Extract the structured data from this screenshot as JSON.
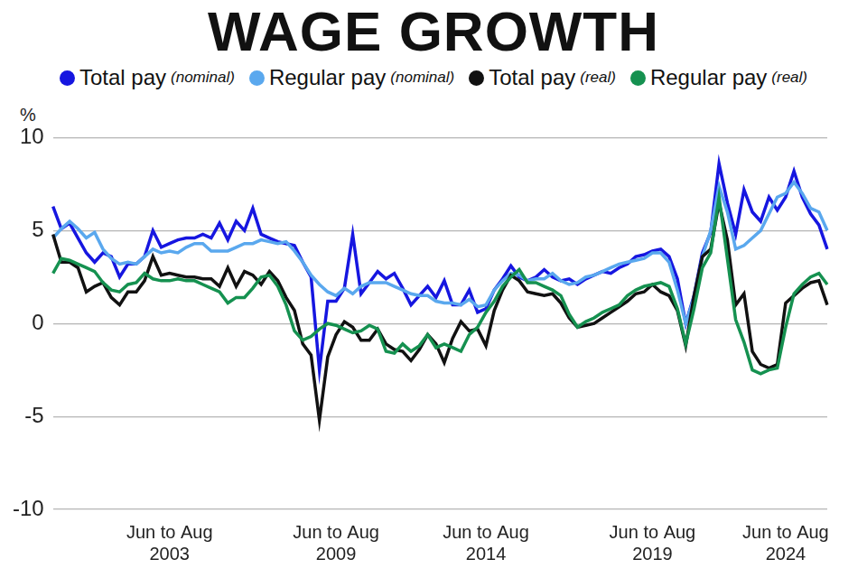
{
  "chart_data": {
    "type": "line",
    "title": "WAGE GROWTH",
    "ylabel": "%",
    "ylim": [
      -10,
      10
    ],
    "yticks": [
      -10,
      -5,
      0,
      5,
      10
    ],
    "grid": true,
    "categories": [
      null,
      null,
      null,
      null,
      null,
      null,
      null,
      null,
      null,
      null,
      null,
      null,
      null,
      null,
      "Jun to Aug 2003",
      null,
      null,
      null,
      null,
      null,
      null,
      null,
      null,
      null,
      null,
      null,
      null,
      null,
      null,
      null,
      null,
      null,
      null,
      null,
      "Jun to Aug 2009",
      null,
      null,
      null,
      null,
      null,
      null,
      null,
      null,
      null,
      null,
      null,
      null,
      null,
      null,
      null,
      null,
      null,
      "Jun to Aug 2014",
      null,
      null,
      null,
      null,
      null,
      null,
      null,
      null,
      null,
      null,
      null,
      null,
      null,
      null,
      null,
      null,
      null,
      null,
      null,
      "Jun to Aug 2019",
      null,
      null,
      null,
      null,
      null,
      null,
      null,
      null,
      null,
      null,
      null,
      null,
      null,
      null,
      null,
      "Jun to Aug 2024",
      null,
      null,
      null,
      null,
      null
    ],
    "series": [
      {
        "name": "Total pay (nominal)",
        "color": "#1616e0",
        "values": [
          6.3,
          5.1,
          5.4,
          4.6,
          3.8,
          3.3,
          3.8,
          3.6,
          2.5,
          3.2,
          3.2,
          3.6,
          5.0,
          4.1,
          4.3,
          4.5,
          4.6,
          4.6,
          4.8,
          4.6,
          5.4,
          4.5,
          5.5,
          5.0,
          6.2,
          4.8,
          4.6,
          4.4,
          4.3,
          4.2,
          3.3,
          2.5,
          -2.5,
          1.2,
          1.2,
          1.9,
          4.8,
          1.6,
          2.2,
          2.8,
          2.4,
          2.7,
          1.9,
          1.0,
          1.5,
          2.0,
          1.4,
          2.3,
          1.0,
          1.0,
          1.8,
          0.6,
          0.8,
          1.8,
          2.4,
          3.1,
          2.5,
          2.3,
          2.5,
          2.9,
          2.5,
          2.3,
          2.4,
          2.1,
          2.4,
          2.6,
          2.8,
          2.7,
          3.0,
          3.2,
          3.6,
          3.7,
          3.9,
          4.0,
          3.6,
          2.4,
          0.0,
          1.5,
          3.8,
          4.9,
          8.6,
          6.5,
          4.8,
          7.2,
          6.0,
          5.5,
          6.8,
          6.1,
          6.8,
          8.2,
          6.8,
          5.9,
          5.3,
          4.0
        ]
      },
      {
        "name": "Regular pay (nominal)",
        "color": "#5aa8ee",
        "values": [
          4.6,
          5.1,
          5.5,
          5.1,
          4.6,
          4.9,
          4.0,
          3.5,
          3.2,
          3.3,
          3.2,
          3.6,
          4.0,
          3.8,
          3.9,
          3.8,
          4.1,
          4.3,
          4.3,
          3.9,
          3.9,
          3.9,
          4.1,
          4.3,
          4.3,
          4.5,
          4.4,
          4.3,
          4.4,
          3.9,
          3.3,
          2.6,
          2.1,
          1.7,
          1.5,
          1.9,
          1.6,
          2.0,
          2.2,
          2.2,
          2.2,
          2.0,
          1.8,
          1.6,
          1.5,
          1.5,
          1.2,
          1.1,
          1.1,
          1.0,
          1.3,
          0.9,
          1.0,
          1.8,
          2.3,
          2.7,
          2.6,
          2.3,
          2.4,
          2.4,
          2.7,
          2.3,
          2.1,
          2.2,
          2.5,
          2.6,
          2.8,
          3.0,
          3.2,
          3.3,
          3.4,
          3.5,
          3.8,
          3.8,
          3.3,
          1.8,
          0.0,
          1.4,
          3.6,
          5.0,
          7.4,
          6.0,
          4.0,
          4.2,
          4.6,
          5.0,
          5.9,
          6.8,
          7.0,
          7.6,
          7.0,
          6.2,
          6.0,
          5.0
        ]
      },
      {
        "name": "Total pay (real)",
        "color": "#111111",
        "values": [
          4.8,
          3.3,
          3.3,
          3.0,
          1.7,
          2.0,
          2.2,
          1.4,
          1.0,
          1.7,
          1.7,
          2.3,
          3.6,
          2.6,
          2.7,
          2.6,
          2.5,
          2.5,
          2.4,
          2.4,
          2.0,
          3.0,
          2.0,
          2.8,
          2.6,
          2.1,
          2.8,
          2.3,
          1.4,
          0.7,
          -1.1,
          -1.7,
          -5.2,
          -1.8,
          -0.6,
          0.1,
          -0.2,
          -0.9,
          -0.9,
          -0.3,
          -1.1,
          -1.4,
          -1.5,
          -2.0,
          -1.4,
          -0.6,
          -1.1,
          -2.1,
          -0.8,
          0.1,
          -0.4,
          -0.3,
          -1.2,
          0.7,
          1.8,
          2.6,
          2.3,
          1.7,
          1.6,
          1.5,
          1.6,
          1.1,
          0.3,
          -0.2,
          -0.1,
          0.0,
          0.3,
          0.6,
          0.9,
          1.2,
          1.6,
          1.7,
          2.1,
          1.7,
          1.5,
          0.7,
          -1.2,
          1.5,
          3.6,
          4.0,
          6.5,
          4.5,
          1.0,
          1.6,
          -1.5,
          -2.2,
          -2.4,
          -2.2,
          1.1,
          1.5,
          1.9,
          2.2,
          2.3,
          1.0
        ]
      },
      {
        "name": "Regular pay (real)",
        "color": "#159150",
        "values": [
          2.7,
          3.5,
          3.4,
          3.2,
          3.0,
          2.8,
          2.2,
          1.8,
          1.7,
          2.1,
          2.2,
          2.7,
          2.4,
          2.3,
          2.3,
          2.4,
          2.3,
          2.3,
          2.1,
          1.9,
          1.7,
          1.1,
          1.4,
          1.4,
          1.9,
          2.5,
          2.6,
          2.0,
          1.0,
          -0.4,
          -0.9,
          -0.7,
          -0.3,
          0.0,
          -0.1,
          -0.3,
          -0.5,
          -0.4,
          -0.1,
          -0.3,
          -1.5,
          -1.6,
          -1.1,
          -1.5,
          -1.2,
          -0.6,
          -1.3,
          -1.1,
          -1.3,
          -1.5,
          -0.6,
          -0.2,
          0.6,
          1.2,
          2.0,
          2.5,
          2.9,
          2.2,
          2.2,
          2.0,
          1.8,
          1.5,
          0.5,
          -0.2,
          0.1,
          0.3,
          0.6,
          0.8,
          1.0,
          1.5,
          1.8,
          2.0,
          2.1,
          2.2,
          2.0,
          0.8,
          -1.1,
          0.8,
          3.0,
          3.8,
          6.8,
          3.5,
          0.2,
          -1.0,
          -2.5,
          -2.7,
          -2.5,
          -2.4,
          -0.2,
          1.6,
          2.1,
          2.5,
          2.7,
          2.1
        ]
      }
    ]
  }
}
